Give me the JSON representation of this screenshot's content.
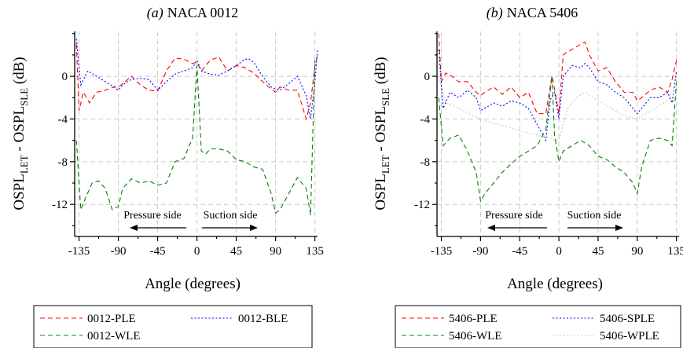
{
  "chart_data": [
    {
      "type": "line",
      "title_prefix": "(a)",
      "title": "NACA 0012",
      "xlabel": "Angle (degrees)",
      "ylabel": "OSPL_LET - OSPL_SLE (dB)",
      "xlim": [
        -140,
        138
      ],
      "ylim": [
        -15,
        4.2
      ],
      "xticks": [
        -135,
        -90,
        -45,
        0,
        45,
        90,
        135
      ],
      "yticks": [
        0,
        -4,
        -8,
        -12
      ],
      "grid": true,
      "annotations": [
        "Pressure side",
        "Suction side"
      ],
      "legend_position": "bottom",
      "series": [
        {
          "name": "0012-PLE",
          "color": "#ff0000",
          "dash": "dashed",
          "x": [
            -138,
            -135,
            -130,
            -123,
            -115,
            -105,
            -95,
            -90,
            -85,
            -75,
            -65,
            -55,
            -45,
            -35,
            -25,
            -15,
            -5,
            0,
            5,
            15,
            25,
            35,
            45,
            55,
            65,
            75,
            85,
            90,
            95,
            105,
            115,
            125,
            130,
            135,
            138
          ],
          "y": [
            3.0,
            -3.2,
            -1.5,
            -2.5,
            -1.5,
            -1.3,
            -1.0,
            -1.0,
            -0.7,
            0.0,
            -0.8,
            -1.3,
            -1.4,
            0.5,
            1.7,
            1.6,
            1.2,
            1.3,
            0.5,
            1.5,
            1.8,
            0.5,
            1.0,
            0.8,
            0.3,
            -0.5,
            -1.2,
            -1.5,
            -1.0,
            -1.3,
            -1.3,
            -4.0,
            -2.5,
            1.0,
            2.0
          ]
        },
        {
          "name": "0012-BLE",
          "color": "#0000ff",
          "dash": "dotted",
          "x": [
            -138,
            -133,
            -125,
            -115,
            -105,
            -95,
            -90,
            -85,
            -75,
            -65,
            -55,
            -45,
            -35,
            -25,
            -15,
            -5,
            0,
            5,
            15,
            25,
            35,
            45,
            55,
            60,
            65,
            75,
            85,
            90,
            95,
            105,
            115,
            125,
            130,
            135,
            138
          ],
          "y": [
            3.5,
            -0.8,
            0.5,
            0.0,
            -0.5,
            -1.0,
            -1.3,
            -0.8,
            -0.3,
            -0.2,
            -0.3,
            -1.3,
            -0.5,
            0.2,
            0.5,
            0.8,
            1.5,
            0.5,
            0.2,
            0.1,
            0.5,
            1.0,
            1.6,
            1.6,
            1.3,
            0.0,
            -1.0,
            -1.2,
            -1.3,
            -0.7,
            0.0,
            -1.8,
            -4.0,
            -0.5,
            2.5
          ]
        },
        {
          "name": "0012-WLE",
          "color": "#008000",
          "dash": "dashed",
          "x": [
            -138,
            -133,
            -128,
            -120,
            -113,
            -105,
            -97,
            -90,
            -85,
            -75,
            -65,
            -55,
            -45,
            -35,
            -25,
            -15,
            -5,
            0,
            5,
            10,
            15,
            25,
            35,
            45,
            55,
            65,
            75,
            85,
            90,
            95,
            105,
            115,
            125,
            130,
            135
          ],
          "y": [
            -6.0,
            -12.5,
            -11.5,
            -10.0,
            -9.8,
            -10.5,
            -12.5,
            -12.2,
            -10.5,
            -9.6,
            -10.0,
            -9.8,
            -10.2,
            -10.0,
            -8.0,
            -7.7,
            -5.8,
            1.0,
            -7.0,
            -7.3,
            -6.8,
            -6.8,
            -7.0,
            -7.8,
            -8.0,
            -8.5,
            -8.7,
            -11.0,
            -12.8,
            -12.5,
            -11.0,
            -9.5,
            -10.5,
            -13.0,
            1.5
          ]
        }
      ]
    },
    {
      "type": "line",
      "title_prefix": "(b)",
      "title": "NACA 5406",
      "xlabel": "Angle (degrees)",
      "ylabel": "OSPL_LET - OSPL_SLE (dB)",
      "xlim": [
        -140,
        138
      ],
      "ylim": [
        -15,
        4.2
      ],
      "xticks": [
        -135,
        -90,
        -45,
        0,
        45,
        90,
        135
      ],
      "yticks": [
        0,
        -4,
        -8,
        -12
      ],
      "grid": true,
      "annotations": [
        "Pressure side",
        "Suction side"
      ],
      "legend_position": "bottom",
      "series": [
        {
          "name": "5406-PLE",
          "color": "#ff0000",
          "dash": "dashed",
          "x": [
            -138,
            -135,
            -130,
            -123,
            -115,
            -105,
            -95,
            -90,
            -85,
            -75,
            -65,
            -55,
            -45,
            -35,
            -25,
            -15,
            -8,
            -5,
            0,
            5,
            10,
            15,
            25,
            30,
            35,
            45,
            55,
            65,
            75,
            85,
            90,
            95,
            105,
            115,
            125,
            130,
            135
          ],
          "y": [
            4.0,
            -0.5,
            0.3,
            0.0,
            -0.5,
            -0.5,
            -1.5,
            -1.8,
            -1.5,
            -1.0,
            -1.7,
            -1.0,
            -2.0,
            -1.5,
            -3.5,
            -3.5,
            0.0,
            -1.2,
            -3.5,
            2.0,
            2.3,
            2.5,
            3.0,
            3.2,
            2.0,
            0.5,
            0.8,
            -0.5,
            -1.5,
            -1.5,
            -2.3,
            -2.0,
            -1.3,
            -1.0,
            -1.5,
            -0.3,
            1.5
          ]
        },
        {
          "name": "5406-SPLE",
          "color": "#0000ff",
          "dash": "dotted",
          "x": [
            -138,
            -133,
            -125,
            -115,
            -105,
            -95,
            -90,
            -85,
            -75,
            -65,
            -55,
            -45,
            -35,
            -25,
            -15,
            -10,
            -5,
            0,
            5,
            10,
            15,
            25,
            30,
            35,
            45,
            55,
            65,
            75,
            85,
            90,
            95,
            105,
            115,
            125,
            130,
            135
          ],
          "y": [
            2.5,
            -3.0,
            -1.5,
            -2.0,
            -1.3,
            -2.0,
            -3.2,
            -3.0,
            -2.5,
            -2.8,
            -2.3,
            -2.5,
            -3.0,
            -4.5,
            -6.0,
            -2.2,
            -1.5,
            -4.0,
            0.0,
            0.5,
            1.0,
            0.8,
            1.2,
            0.8,
            -0.5,
            -0.8,
            -1.5,
            -2.0,
            -3.0,
            -3.5,
            -3.0,
            -2.0,
            -2.0,
            -1.5,
            -2.5,
            0.5
          ]
        },
        {
          "name": "5406-WLE",
          "color": "#008000",
          "dash": "dashed",
          "x": [
            -138,
            -133,
            -125,
            -115,
            -105,
            -95,
            -90,
            -85,
            -75,
            -65,
            -55,
            -45,
            -35,
            -25,
            -15,
            -8,
            -5,
            0,
            5,
            15,
            25,
            35,
            45,
            55,
            65,
            75,
            85,
            90,
            95,
            105,
            115,
            125,
            130,
            135
          ],
          "y": [
            -2.0,
            -6.5,
            -5.8,
            -5.5,
            -7.0,
            -9.0,
            -11.7,
            -11.0,
            -10.0,
            -9.0,
            -8.2,
            -7.5,
            -7.0,
            -6.5,
            -5.0,
            0.0,
            -5.5,
            -8.0,
            -7.0,
            -6.5,
            -6.0,
            -6.5,
            -7.5,
            -7.8,
            -8.5,
            -9.0,
            -10.0,
            -11.0,
            -8.5,
            -6.0,
            -5.8,
            -6.0,
            -6.5,
            -0.5
          ]
        },
        {
          "name": "5406-WPLE",
          "color": "#c8c8c8",
          "dash": "dotted",
          "x": [
            -138,
            -130,
            -120,
            -110,
            -100,
            -90,
            -80,
            -70,
            -60,
            -50,
            -40,
            -30,
            -20,
            -10,
            0,
            10,
            20,
            30,
            40,
            50,
            60,
            70,
            80,
            90,
            100,
            110,
            120,
            130,
            135
          ],
          "y": [
            0.0,
            -2.5,
            -2.8,
            -3.2,
            -3.6,
            -4.0,
            -4.3,
            -4.5,
            -4.7,
            -5.0,
            -5.2,
            -5.4,
            -5.6,
            -5.8,
            -6.0,
            -3.0,
            -2.0,
            -1.5,
            -2.0,
            -2.5,
            -3.0,
            -3.5,
            -3.8,
            -4.0,
            -3.5,
            -3.0,
            -2.5,
            -2.0,
            -0.5
          ]
        }
      ]
    }
  ]
}
